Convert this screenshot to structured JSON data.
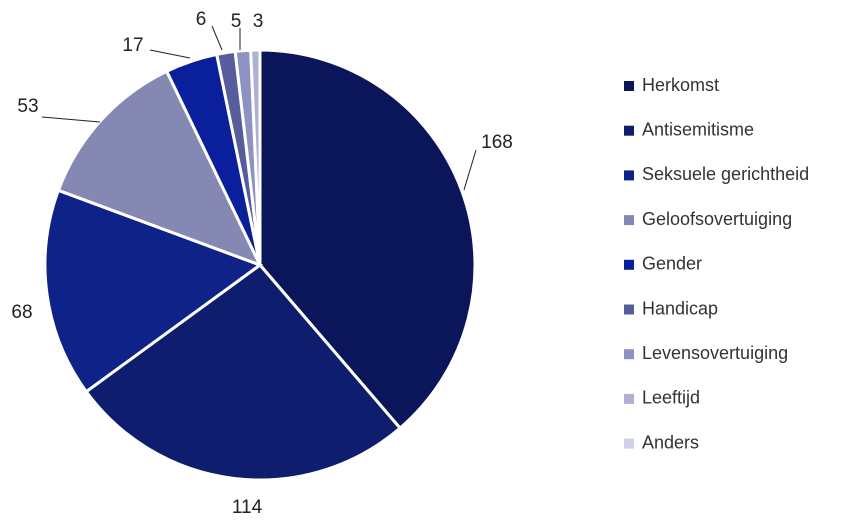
{
  "chart_data": {
    "type": "pie",
    "categories": [
      "Herkomst",
      "Antisemitisme",
      "Seksuele gerichtheid",
      "Geloofsovertuiging",
      "Gender",
      "Handicap",
      "Levensovertuiging",
      "Leeftijd",
      "Anders"
    ],
    "values": [
      168,
      114,
      68,
      53,
      17,
      6,
      5,
      3,
      null
    ],
    "colors": [
      "#0b165a",
      "#0e1d6e",
      "#0f2288",
      "#8488b3",
      "#0a1f9c",
      "#575d9c",
      "#8d92c2",
      "#aeb1d5",
      "#cdd0e6"
    ],
    "legend": "right"
  }
}
